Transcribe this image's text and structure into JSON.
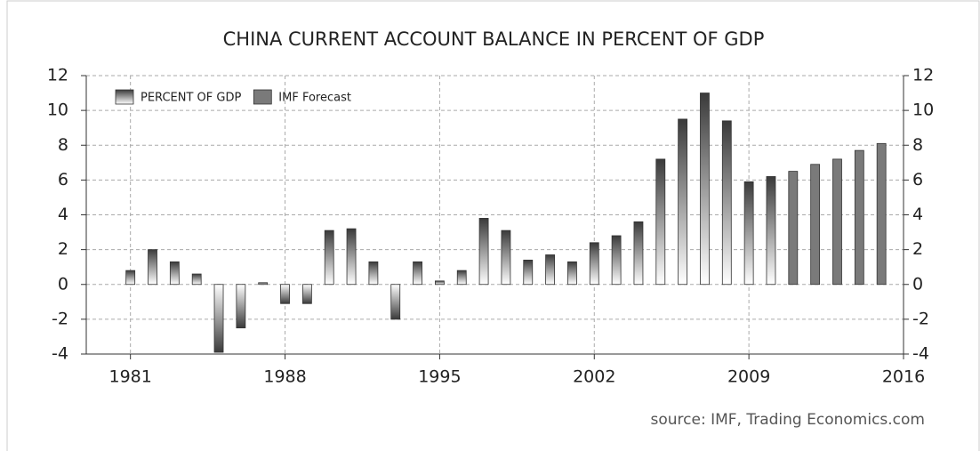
{
  "chart_data": {
    "type": "bar",
    "title": "CHINA CURRENT ACCOUNT BALANCE IN PERCENT OF GDP",
    "source": "source: IMF, Trading Economics.com",
    "x": [
      1981,
      1982,
      1983,
      1984,
      1985,
      1986,
      1987,
      1988,
      1989,
      1990,
      1991,
      1992,
      1993,
      1994,
      1995,
      1996,
      1997,
      1998,
      1999,
      2000,
      2001,
      2002,
      2003,
      2004,
      2005,
      2006,
      2007,
      2008,
      2009,
      2010,
      2011,
      2012,
      2013,
      2014,
      2015
    ],
    "series": [
      {
        "name": "PERCENT OF GDP",
        "color": "#3a3a3a",
        "values": [
          0.8,
          2.0,
          1.3,
          0.6,
          -3.9,
          -2.5,
          0.1,
          -1.1,
          -1.1,
          3.1,
          3.2,
          1.3,
          -2.0,
          1.3,
          0.2,
          0.8,
          3.8,
          3.1,
          1.4,
          1.7,
          1.3,
          2.4,
          2.8,
          3.6,
          7.2,
          9.5,
          11.0,
          9.4,
          5.9,
          6.2,
          null,
          null,
          null,
          null,
          null
        ]
      },
      {
        "name": "IMF Forecast",
        "color": "#7a7a7a",
        "values": [
          null,
          null,
          null,
          null,
          null,
          null,
          null,
          null,
          null,
          null,
          null,
          null,
          null,
          null,
          null,
          null,
          null,
          null,
          null,
          null,
          null,
          null,
          null,
          null,
          null,
          null,
          null,
          null,
          null,
          null,
          6.5,
          6.9,
          7.2,
          7.7,
          8.1
        ]
      }
    ],
    "xlim": [
      1979,
      2016
    ],
    "xticks": [
      1981,
      1988,
      1995,
      2002,
      2009,
      2016
    ],
    "ylim": [
      -4,
      12
    ],
    "yticks": [
      -4,
      -2,
      0,
      2,
      4,
      6,
      8,
      10,
      12
    ],
    "y2lim": [
      -4,
      12
    ],
    "y2ticks": [
      -4,
      -2,
      0,
      2,
      4,
      6,
      8,
      10,
      12
    ],
    "grid": true,
    "legend": "top-left"
  }
}
